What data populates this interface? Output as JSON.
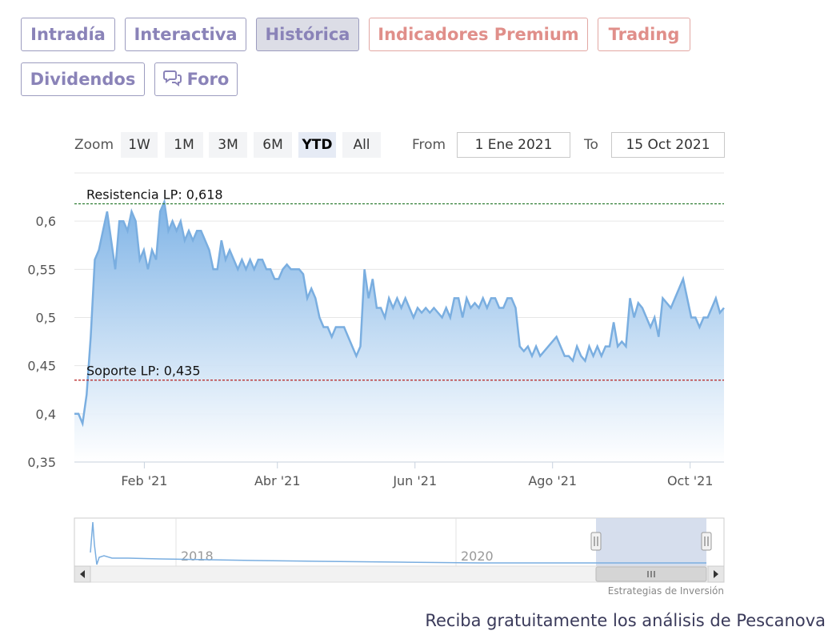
{
  "tabs": [
    {
      "label": "Intradía",
      "active": false,
      "premium": false
    },
    {
      "label": "Interactiva",
      "active": false,
      "premium": false
    },
    {
      "label": "Histórica",
      "active": true,
      "premium": false
    },
    {
      "label": "Indicadores Premium",
      "active": false,
      "premium": true
    },
    {
      "label": "Trading",
      "active": false,
      "premium": true
    },
    {
      "label": "Dividendos",
      "active": false,
      "premium": false
    },
    {
      "label": "Foro",
      "active": false,
      "premium": false,
      "icon": "chat-bubbles-icon"
    }
  ],
  "range_selector": {
    "zoom_label": "Zoom",
    "buttons": [
      "1W",
      "1M",
      "3M",
      "6M",
      "YTD",
      "All"
    ],
    "selected": "YTD",
    "from_label": "From",
    "from_value": "1 Ene 2021",
    "to_label": "To",
    "to_value": "15 Oct 2021"
  },
  "chart_data": {
    "type": "area",
    "x_axis": {
      "start": "2021-01-01",
      "end": "2021-10-15",
      "tick_labels": [
        "Feb '21",
        "Abr '21",
        "Jun '21",
        "Ago '21",
        "Oct '21"
      ]
    },
    "y_axis": {
      "min": 0.35,
      "max": 0.65,
      "tick_labels": [
        "0,35",
        "0,4",
        "0,45",
        "0,5",
        "0,55",
        "0,6"
      ]
    },
    "grid": true,
    "series": [
      {
        "color": "#7aaee0",
        "values": [
          0.4,
          0.4,
          0.39,
          0.42,
          0.48,
          0.56,
          0.57,
          0.59,
          0.61,
          0.58,
          0.55,
          0.6,
          0.6,
          0.59,
          0.61,
          0.6,
          0.56,
          0.57,
          0.55,
          0.57,
          0.56,
          0.61,
          0.62,
          0.59,
          0.6,
          0.59,
          0.6,
          0.58,
          0.59,
          0.58,
          0.59,
          0.59,
          0.58,
          0.57,
          0.55,
          0.55,
          0.58,
          0.56,
          0.57,
          0.56,
          0.55,
          0.56,
          0.55,
          0.56,
          0.55,
          0.56,
          0.56,
          0.55,
          0.55,
          0.54,
          0.54,
          0.55,
          0.555,
          0.55,
          0.55,
          0.55,
          0.545,
          0.52,
          0.53,
          0.52,
          0.5,
          0.49,
          0.49,
          0.48,
          0.49,
          0.49,
          0.49,
          0.48,
          0.47,
          0.46,
          0.47,
          0.55,
          0.52,
          0.54,
          0.51,
          0.51,
          0.5,
          0.52,
          0.51,
          0.52,
          0.51,
          0.52,
          0.51,
          0.5,
          0.51,
          0.505,
          0.51,
          0.505,
          0.51,
          0.505,
          0.5,
          0.51,
          0.5,
          0.52,
          0.52,
          0.5,
          0.52,
          0.51,
          0.515,
          0.51,
          0.52,
          0.51,
          0.52,
          0.52,
          0.51,
          0.51,
          0.52,
          0.52,
          0.51,
          0.47,
          0.465,
          0.47,
          0.46,
          0.47,
          0.46,
          0.465,
          0.47,
          0.475,
          0.48,
          0.47,
          0.46,
          0.46,
          0.455,
          0.47,
          0.46,
          0.455,
          0.47,
          0.46,
          0.47,
          0.46,
          0.47,
          0.47,
          0.495,
          0.47,
          0.475,
          0.47,
          0.52,
          0.5,
          0.515,
          0.51,
          0.5,
          0.49,
          0.5,
          0.48,
          0.52,
          0.515,
          0.51,
          0.52,
          0.53,
          0.54,
          0.52,
          0.5,
          0.5,
          0.49,
          0.5,
          0.5,
          0.51,
          0.52,
          0.505,
          0.51
        ],
        "style": "gradient-fill"
      }
    ],
    "plot_lines": [
      {
        "label": "Resistencia LP: 0,618",
        "value": 0.618,
        "color": "#2e7d32",
        "style": "dashed"
      },
      {
        "label": "Soporte LP: 0,435",
        "value": 0.435,
        "color": "#b71c1c",
        "style": "dashed"
      }
    ],
    "navigator": {
      "year_labels": [
        "2018",
        "2020"
      ],
      "scroll_thumb_icon": "grip-lines-icon"
    }
  },
  "credits": "Estrategias de Inversión",
  "footer": "Reciba gratuitamente los análisis de Pescanova"
}
